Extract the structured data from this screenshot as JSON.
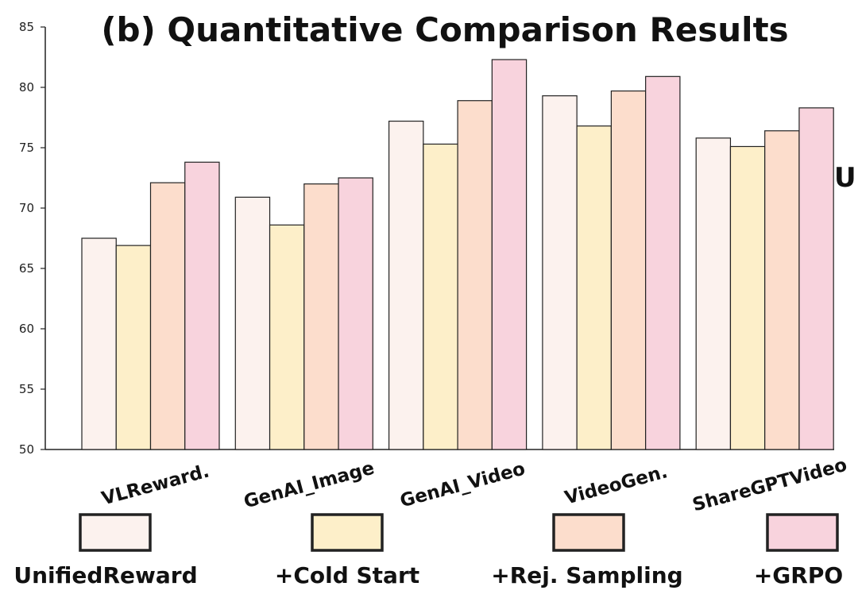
{
  "chart_data": {
    "type": "bar",
    "title": "(b) Quantitative Comparison Results",
    "categories": [
      "VLReward.",
      "GenAI_Image",
      "GenAI_Video",
      "VideoGen.",
      "ShareGPTVideo"
    ],
    "series": [
      {
        "name": "UnifiedReward",
        "color": "#FCF2EE",
        "values": [
          67.5,
          70.9,
          77.2,
          79.3,
          75.8
        ]
      },
      {
        "name": "+Cold Start",
        "color": "#FDEFC9",
        "values": [
          66.9,
          68.6,
          75.3,
          76.8,
          75.1
        ]
      },
      {
        "name": "+Rej. Sampling",
        "color": "#FCDDCC",
        "values": [
          72.1,
          72.0,
          78.9,
          79.7,
          76.4
        ]
      },
      {
        "name": "+GRPO",
        "color": "#F8D3DD",
        "values": [
          73.8,
          72.5,
          82.3,
          80.9,
          78.3
        ]
      }
    ],
    "xlabel": "",
    "ylabel": "",
    "ylim": [
      50,
      85
    ],
    "yticks": [
      50,
      55,
      60,
      65,
      70,
      75,
      80,
      85
    ],
    "legend_position": "bottom",
    "grid": false
  },
  "edge_text": "U"
}
